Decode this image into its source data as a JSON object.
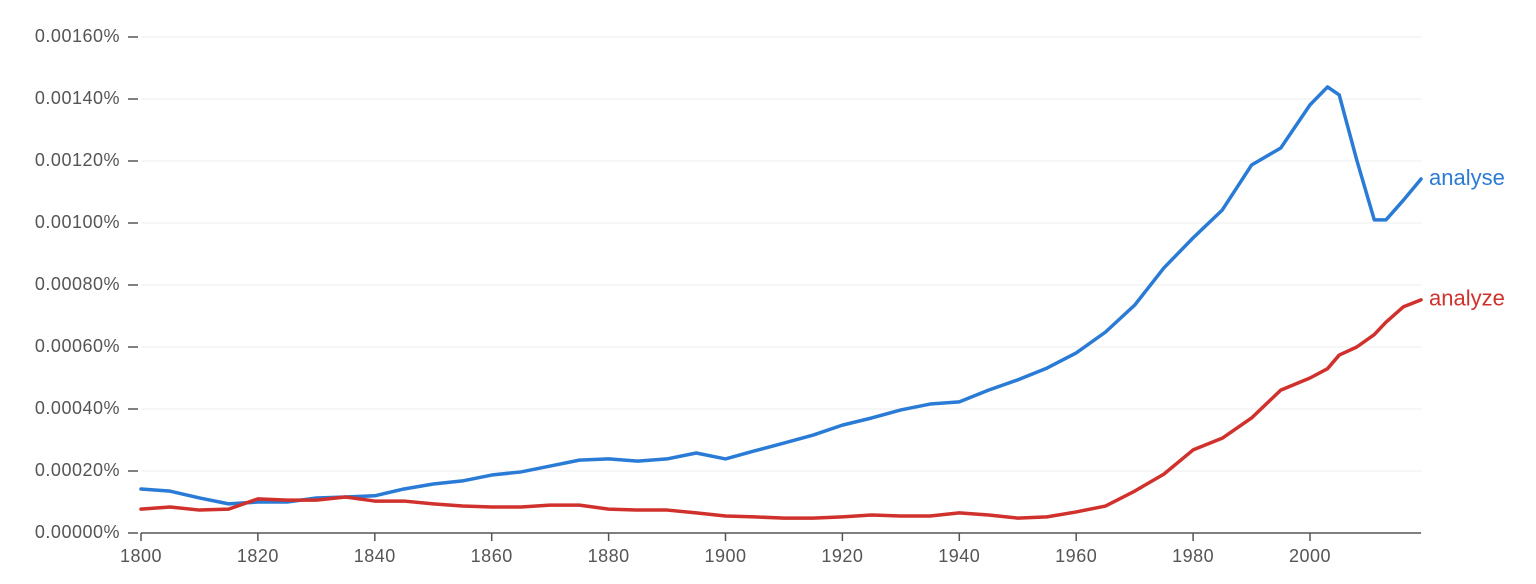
{
  "chart_data": {
    "type": "line",
    "x": [
      1800,
      1805,
      1810,
      1815,
      1820,
      1825,
      1830,
      1835,
      1840,
      1845,
      1850,
      1855,
      1860,
      1865,
      1870,
      1875,
      1880,
      1885,
      1890,
      1895,
      1900,
      1905,
      1910,
      1915,
      1920,
      1925,
      1930,
      1935,
      1940,
      1945,
      1950,
      1955,
      1960,
      1965,
      1970,
      1975,
      1980,
      1985,
      1990,
      1995,
      2000,
      2003,
      2005,
      2008,
      2011,
      2013,
      2016,
      2019
    ],
    "series": [
      {
        "name": "analyse",
        "color": "#2a7bd6",
        "values": [
          0.000142,
          0.000135,
          0.000113,
          9.4e-05,
          0.0001,
          0.0001,
          0.000113,
          0.000116,
          0.00012,
          0.000142,
          0.000158,
          0.000168,
          0.000187,
          0.000197,
          0.000216,
          0.000235,
          0.000239,
          0.000232,
          0.000239,
          0.000258,
          0.000239,
          0.000265,
          0.00029,
          0.000316,
          0.000348,
          0.000371,
          0.000397,
          0.000416,
          0.000423,
          0.000461,
          0.000494,
          0.000532,
          0.000581,
          0.000648,
          0.000735,
          0.000855,
          0.000952,
          0.001042,
          0.001187,
          0.001242,
          0.001381,
          0.001439,
          0.001413,
          0.001203,
          0.00101,
          0.00101,
          0.001074,
          0.001142
        ]
      },
      {
        "name": "analyze",
        "color": "#d0312d",
        "values": [
          7.7e-05,
          8.4e-05,
          7.4e-05,
          7.7e-05,
          0.00011,
          0.000106,
          0.000106,
          0.000116,
          0.000103,
          0.000103,
          9.4e-05,
          8.7e-05,
          8.4e-05,
          8.4e-05,
          9e-05,
          9e-05,
          7.7e-05,
          7.4e-05,
          7.4e-05,
          6.5e-05,
          5.5e-05,
          5.2e-05,
          4.8e-05,
          4.8e-05,
          5.2e-05,
          5.8e-05,
          5.5e-05,
          5.5e-05,
          6.5e-05,
          5.8e-05,
          4.8e-05,
          5.2e-05,
          6.8e-05,
          8.7e-05,
          0.000135,
          0.00019,
          0.000268,
          0.000306,
          0.000371,
          0.000461,
          0.0005,
          0.00053,
          0.000574,
          0.0006,
          0.00064,
          0.00068,
          0.00073,
          0.000752
        ]
      }
    ],
    "xlim": [
      1800,
      2019
    ],
    "xticks": [
      1800,
      1820,
      1840,
      1860,
      1880,
      1900,
      1920,
      1940,
      1960,
      1980,
      2000
    ],
    "ylim": [
      0,
      0.0016
    ],
    "yticks": [
      {
        "value": 0,
        "label": "0.00000%"
      },
      {
        "value": 0.0002,
        "label": "0.00020%"
      },
      {
        "value": 0.0004,
        "label": "0.00040%"
      },
      {
        "value": 0.0006,
        "label": "0.00060%"
      },
      {
        "value": 0.0008,
        "label": "0.00080%"
      },
      {
        "value": 0.001,
        "label": "0.00100%"
      },
      {
        "value": 0.0012,
        "label": "0.00120%"
      },
      {
        "value": 0.0014,
        "label": "0.00140%"
      },
      {
        "value": 0.0016,
        "label": "0.00160%"
      }
    ],
    "grid": true
  }
}
